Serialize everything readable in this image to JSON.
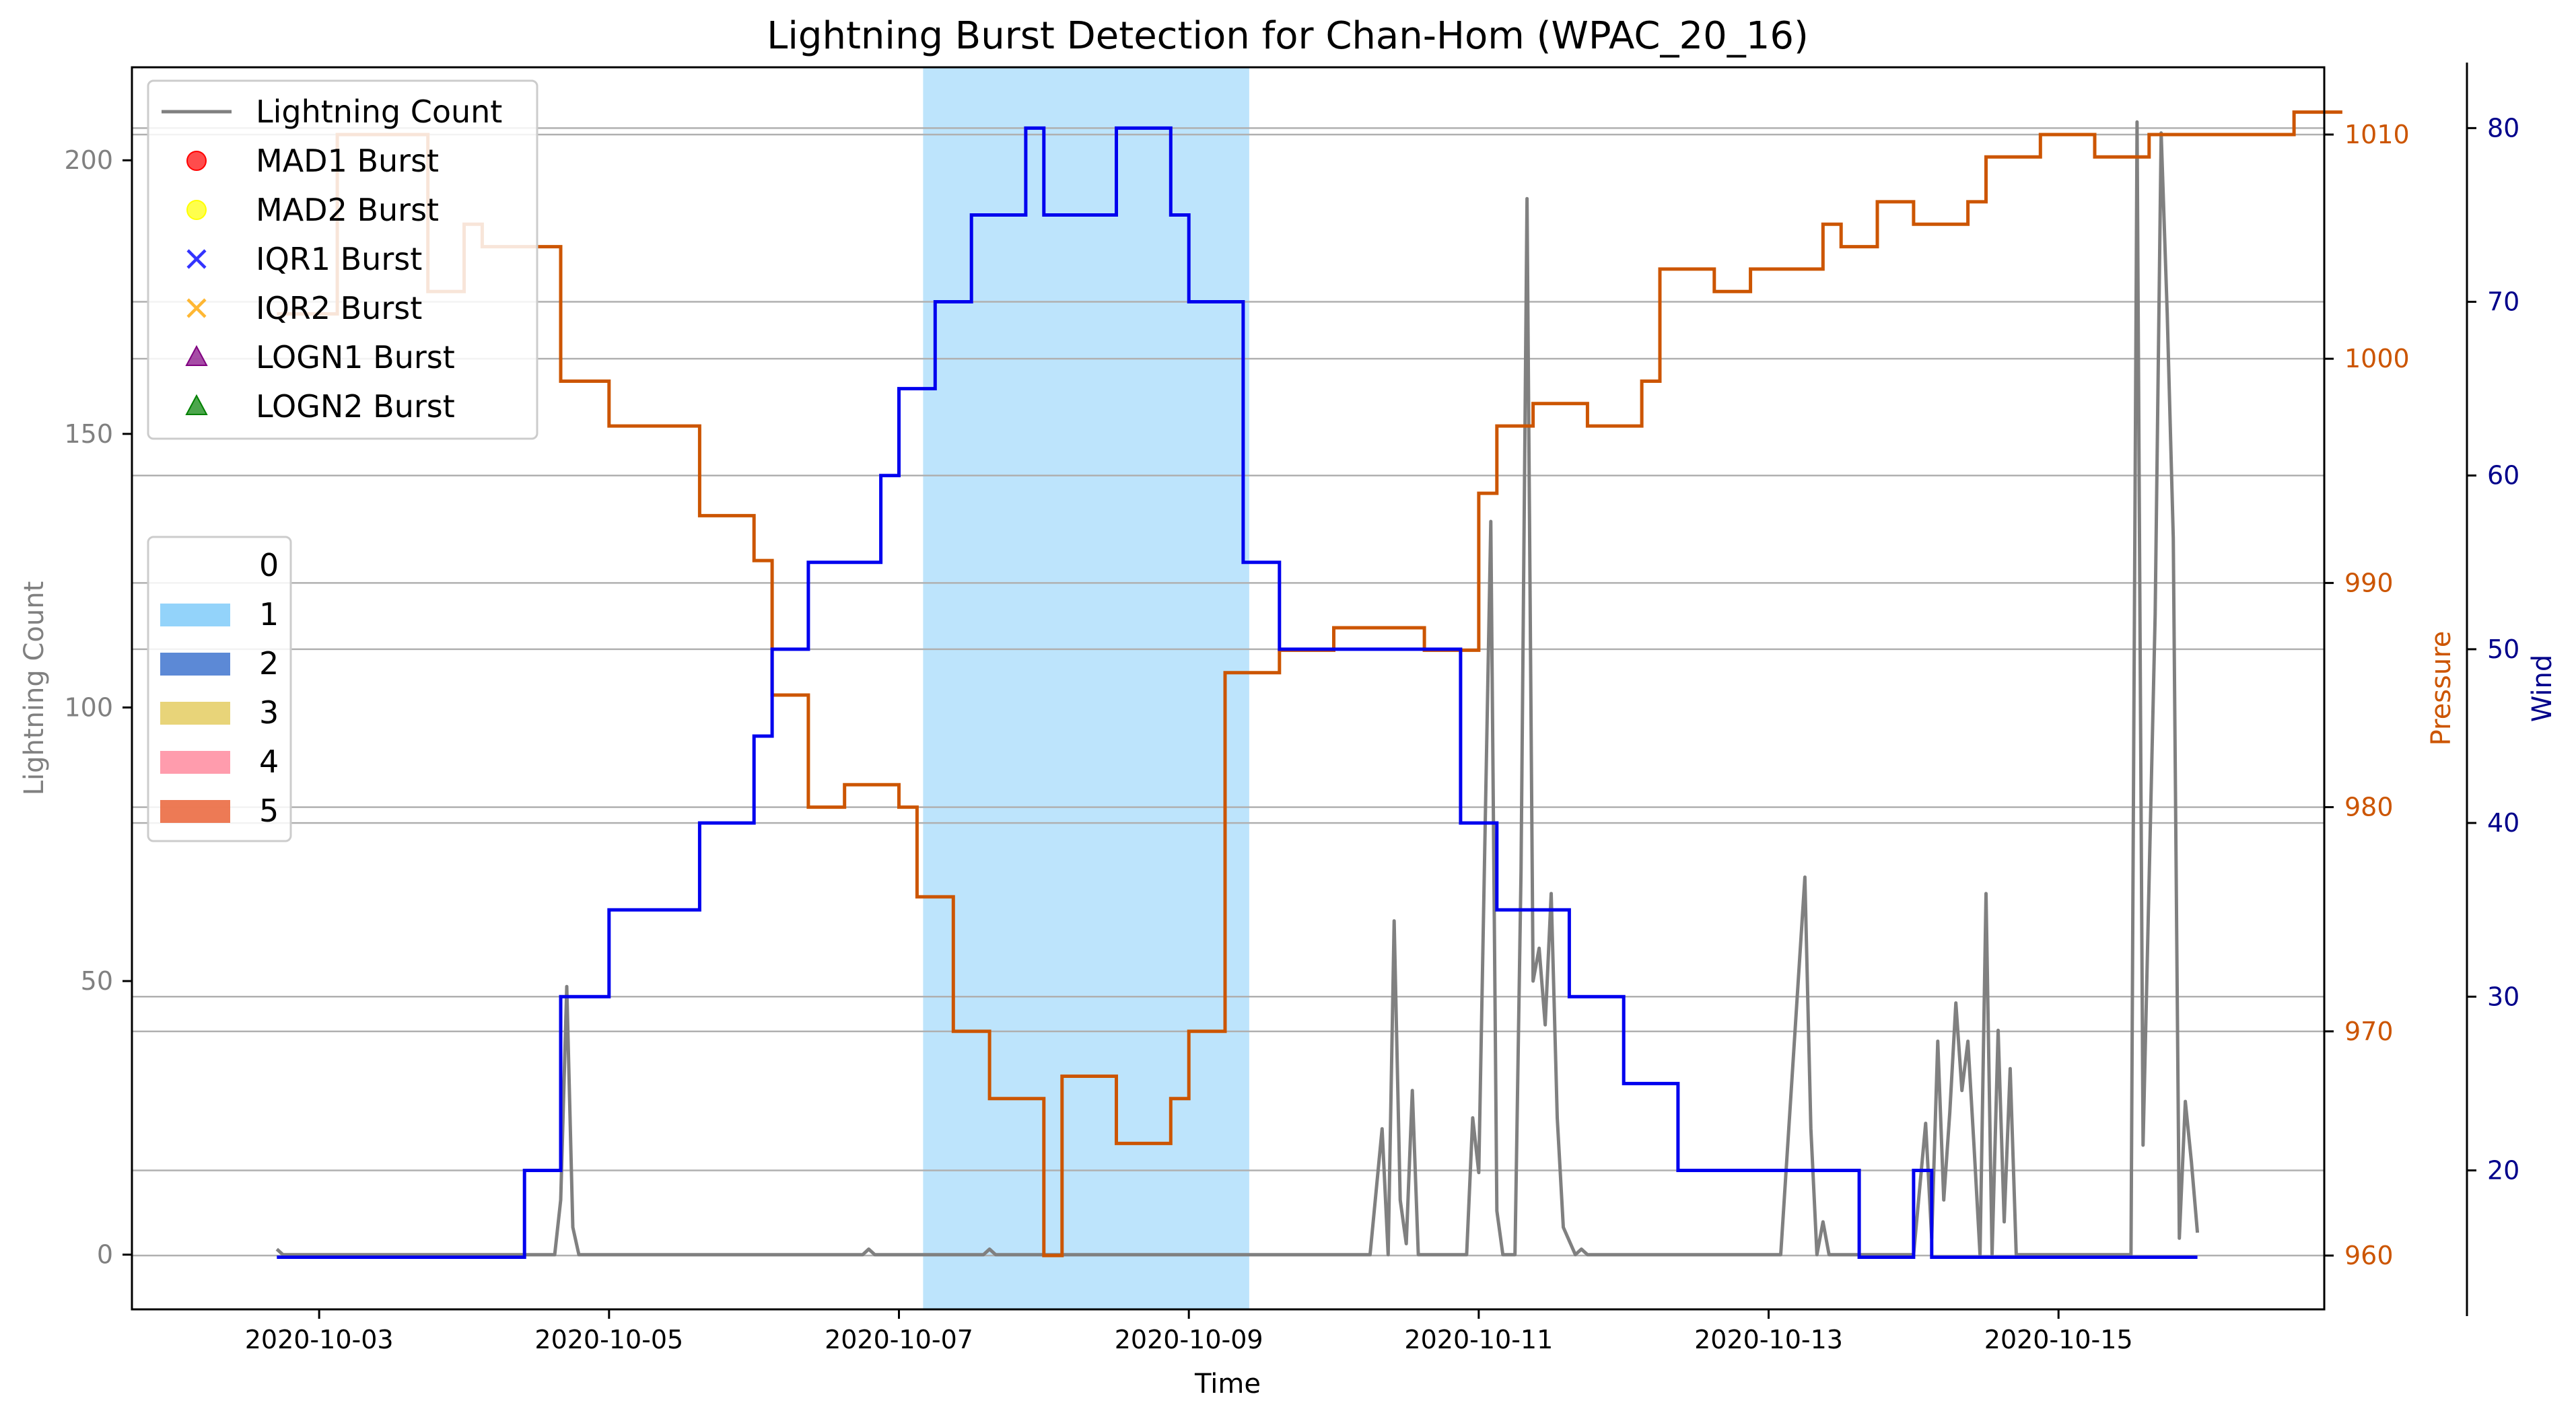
{
  "chart_data": {
    "type": "line",
    "title": "Lightning Burst Detection for Chan-Hom (WPAC_20_16)",
    "xlabel": "Time",
    "ylabel_left": "Lightning Count",
    "ylabel_pressure": "Pressure",
    "ylabel_wind": "Wind",
    "x_range": [
      "2020-10-01T17:00",
      "2020-10-16T20:00"
    ],
    "x_ticks": [
      "2020-10-03",
      "2020-10-05",
      "2020-10-07",
      "2020-10-09",
      "2020-10-11",
      "2020-10-13",
      "2020-10-15"
    ],
    "ylim_lightning": [
      -10,
      217
    ],
    "yticks_lightning": [
      0,
      50,
      100,
      150,
      200
    ],
    "ylim_pressure": [
      957.6,
      1013.0
    ],
    "yticks_pressure": [
      960,
      970,
      980,
      990,
      1000,
      1010
    ],
    "ylim_wind": [
      12,
      83.5
    ],
    "yticks_wind": [
      20,
      30,
      40,
      50,
      60,
      70,
      80
    ],
    "grid": "horizontal",
    "colors": {
      "lightning": "#808080",
      "pressure": "#cc5500",
      "wind": "#0000ee",
      "cat0": "#ffffff",
      "cat1": "#87cefa",
      "cat2": "#4a7cd1",
      "cat3": "#e6cf6a",
      "cat4": "#ff91a4",
      "cat5": "#eb6b43",
      "mad1": "#ff0000",
      "mad2": "#ffff00",
      "iqr1": "#0000ff",
      "iqr2": "#ffa500",
      "logn1": "#800080",
      "logn2": "#008000"
    },
    "category_band": {
      "category": "1",
      "start": "2020-10-07T04:00",
      "end": "2020-10-09T10:00"
    },
    "legend_series": [
      {
        "name": "Lightning Count",
        "marker": "line",
        "color": "#808080"
      },
      {
        "name": "MAD1 Burst",
        "marker": "circle",
        "color": "#ff0000"
      },
      {
        "name": "MAD2 Burst",
        "marker": "circle",
        "color": "#ffff00"
      },
      {
        "name": "IQR1 Burst",
        "marker": "x",
        "color": "#0000ff"
      },
      {
        "name": "IQR2 Burst",
        "marker": "x",
        "color": "#ffa500"
      },
      {
        "name": "LOGN1 Burst",
        "marker": "triangle",
        "color": "#800080"
      },
      {
        "name": "LOGN2 Burst",
        "marker": "triangle",
        "color": "#008000"
      }
    ],
    "legend_categories": [
      {
        "name": "0",
        "color": "#ffffff"
      },
      {
        "name": "1",
        "color": "#87cefa"
      },
      {
        "name": "2",
        "color": "#4a7cd1"
      },
      {
        "name": "3",
        "color": "#e6cf6a"
      },
      {
        "name": "4",
        "color": "#ff91a4"
      },
      {
        "name": "5",
        "color": "#eb6b43"
      }
    ],
    "wind_series": {
      "name": "Wind",
      "points": [
        [
          "2020-10-02T17:00",
          15
        ],
        [
          "2020-10-04T10:00",
          15
        ],
        [
          "2020-10-04T10:00",
          20
        ],
        [
          "2020-10-04T16:00",
          20
        ],
        [
          "2020-10-04T16:00",
          30
        ],
        [
          "2020-10-05T00:00",
          30
        ],
        [
          "2020-10-05T00:00",
          35
        ],
        [
          "2020-10-05T15:00",
          35
        ],
        [
          "2020-10-05T15:00",
          40
        ],
        [
          "2020-10-06T00:00",
          40
        ],
        [
          "2020-10-06T00:00",
          45
        ],
        [
          "2020-10-06T03:00",
          45
        ],
        [
          "2020-10-06T03:00",
          50
        ],
        [
          "2020-10-06T09:00",
          50
        ],
        [
          "2020-10-06T09:00",
          55
        ],
        [
          "2020-10-06T21:00",
          55
        ],
        [
          "2020-10-06T21:00",
          60
        ],
        [
          "2020-10-07T00:00",
          60
        ],
        [
          "2020-10-07T00:00",
          65
        ],
        [
          "2020-10-07T06:00",
          65
        ],
        [
          "2020-10-07T06:00",
          70
        ],
        [
          "2020-10-07T12:00",
          70
        ],
        [
          "2020-10-07T12:00",
          75
        ],
        [
          "2020-10-07T21:00",
          75
        ],
        [
          "2020-10-07T21:00",
          80
        ],
        [
          "2020-10-08T00:00",
          80
        ],
        [
          "2020-10-08T00:00",
          75
        ],
        [
          "2020-10-08T12:00",
          75
        ],
        [
          "2020-10-08T12:00",
          80
        ],
        [
          "2020-10-08T21:00",
          80
        ],
        [
          "2020-10-08T21:00",
          75
        ],
        [
          "2020-10-09T00:00",
          75
        ],
        [
          "2020-10-09T00:00",
          70
        ],
        [
          "2020-10-09T09:00",
          70
        ],
        [
          "2020-10-09T09:00",
          55
        ],
        [
          "2020-10-09T15:00",
          55
        ],
        [
          "2020-10-09T15:00",
          50
        ],
        [
          "2020-10-10T21:00",
          50
        ],
        [
          "2020-10-10T21:00",
          40
        ],
        [
          "2020-10-11T03:00",
          40
        ],
        [
          "2020-10-11T03:00",
          35
        ],
        [
          "2020-10-11T15:00",
          35
        ],
        [
          "2020-10-11T15:00",
          30
        ],
        [
          "2020-10-12T00:00",
          30
        ],
        [
          "2020-10-12T00:00",
          25
        ],
        [
          "2020-10-12T09:00",
          25
        ],
        [
          "2020-10-12T09:00",
          20
        ],
        [
          "2020-10-13T15:00",
          20
        ],
        [
          "2020-10-13T15:00",
          15
        ],
        [
          "2020-10-14T00:00",
          15
        ],
        [
          "2020-10-14T00:00",
          20
        ],
        [
          "2020-10-14T03:00",
          20
        ],
        [
          "2020-10-14T03:00",
          15
        ],
        [
          "2020-10-15T23:00",
          15
        ]
      ]
    },
    "pressure_series": {
      "name": "Pressure",
      "points": [
        [
          "2020-10-02T17:00",
          1002
        ],
        [
          "2020-10-03T03:00",
          1002
        ],
        [
          "2020-10-03T03:00",
          1010
        ],
        [
          "2020-10-03T18:00",
          1010
        ],
        [
          "2020-10-03T18:00",
          1003
        ],
        [
          "2020-10-04T00:00",
          1003
        ],
        [
          "2020-10-04T00:00",
          1006
        ],
        [
          "2020-10-04T03:00",
          1006
        ],
        [
          "2020-10-04T03:00",
          1005
        ],
        [
          "2020-10-04T16:00",
          1005
        ],
        [
          "2020-10-04T16:00",
          999
        ],
        [
          "2020-10-05T00:00",
          999
        ],
        [
          "2020-10-05T00:00",
          997
        ],
        [
          "2020-10-05T15:00",
          997
        ],
        [
          "2020-10-05T15:00",
          993
        ],
        [
          "2020-10-06T00:00",
          993
        ],
        [
          "2020-10-06T00:00",
          991
        ],
        [
          "2020-10-06T03:00",
          991
        ],
        [
          "2020-10-06T03:00",
          985
        ],
        [
          "2020-10-06T09:00",
          985
        ],
        [
          "2020-10-06T09:00",
          980
        ],
        [
          "2020-10-06T15:00",
          980
        ],
        [
          "2020-10-06T15:00",
          981
        ],
        [
          "2020-10-07T00:00",
          981
        ],
        [
          "2020-10-07T00:00",
          980
        ],
        [
          "2020-10-07T03:00",
          980
        ],
        [
          "2020-10-07T03:00",
          976
        ],
        [
          "2020-10-07T09:00",
          976
        ],
        [
          "2020-10-07T09:00",
          970
        ],
        [
          "2020-10-07T15:00",
          970
        ],
        [
          "2020-10-07T15:00",
          967
        ],
        [
          "2020-10-08T00:00",
          967
        ],
        [
          "2020-10-08T00:00",
          960
        ],
        [
          "2020-10-08T03:00",
          960
        ],
        [
          "2020-10-08T03:00",
          968
        ],
        [
          "2020-10-08T12:00",
          968
        ],
        [
          "2020-10-08T12:00",
          965
        ],
        [
          "2020-10-08T21:00",
          965
        ],
        [
          "2020-10-08T21:00",
          967
        ],
        [
          "2020-10-09T00:00",
          967
        ],
        [
          "2020-10-09T00:00",
          970
        ],
        [
          "2020-10-09T06:00",
          970
        ],
        [
          "2020-10-09T06:00",
          986
        ],
        [
          "2020-10-09T15:00",
          986
        ],
        [
          "2020-10-09T15:00",
          987
        ],
        [
          "2020-10-10T00:00",
          987
        ],
        [
          "2020-10-10T00:00",
          988
        ],
        [
          "2020-10-10T15:00",
          988
        ],
        [
          "2020-10-10T15:00",
          987
        ],
        [
          "2020-10-11T00:00",
          987
        ],
        [
          "2020-10-11T00:00",
          994
        ],
        [
          "2020-10-11T03:00",
          994
        ],
        [
          "2020-10-11T03:00",
          997
        ],
        [
          "2020-10-11T09:00",
          997
        ],
        [
          "2020-10-11T09:00",
          998
        ],
        [
          "2020-10-11T18:00",
          998
        ],
        [
          "2020-10-11T18:00",
          997
        ],
        [
          "2020-10-12T03:00",
          997
        ],
        [
          "2020-10-12T03:00",
          999
        ],
        [
          "2020-10-12T06:00",
          999
        ],
        [
          "2020-10-12T06:00",
          1004
        ],
        [
          "2020-10-12T15:00",
          1004
        ],
        [
          "2020-10-12T15:00",
          1003
        ],
        [
          "2020-10-12T21:00",
          1003
        ],
        [
          "2020-10-12T21:00",
          1004
        ],
        [
          "2020-10-13T09:00",
          1004
        ],
        [
          "2020-10-13T09:00",
          1006
        ],
        [
          "2020-10-13T12:00",
          1006
        ],
        [
          "2020-10-13T12:00",
          1005
        ],
        [
          "2020-10-13T18:00",
          1005
        ],
        [
          "2020-10-13T18:00",
          1007
        ],
        [
          "2020-10-14T00:00",
          1007
        ],
        [
          "2020-10-14T00:00",
          1006
        ],
        [
          "2020-10-14T09:00",
          1006
        ],
        [
          "2020-10-14T09:00",
          1007
        ],
        [
          "2020-10-14T12:00",
          1007
        ],
        [
          "2020-10-14T12:00",
          1009
        ],
        [
          "2020-10-14T15:00",
          1009
        ],
        [
          "2020-10-14T15:00",
          1009
        ],
        [
          "2020-10-14T21:00",
          1009
        ],
        [
          "2020-10-14T21:00",
          1010
        ],
        [
          "2020-10-15T06:00",
          1010
        ],
        [
          "2020-10-15T06:00",
          1009
        ],
        [
          "2020-10-15T15:00",
          1009
        ],
        [
          "2020-10-15T15:00",
          1010
        ],
        [
          "2020-10-16T15:00",
          1010
        ],
        [
          "2020-10-16T15:00",
          1011
        ],
        [
          "2020-10-16T23:00",
          1011
        ]
      ]
    },
    "lightning_series": {
      "name": "Lightning Count",
      "points": [
        [
          "2020-10-02T17:00",
          1
        ],
        [
          "2020-10-02T18:00",
          0
        ],
        [
          "2020-10-04T15:00",
          0
        ],
        [
          "2020-10-04T16:00",
          10
        ],
        [
          "2020-10-04T17:00",
          49
        ],
        [
          "2020-10-04T18:00",
          5
        ],
        [
          "2020-10-04T19:00",
          0
        ],
        [
          "2020-10-06T18:00",
          0
        ],
        [
          "2020-10-06T19:00",
          1
        ],
        [
          "2020-10-06T20:00",
          0
        ],
        [
          "2020-10-07T14:00",
          0
        ],
        [
          "2020-10-07T15:00",
          1
        ],
        [
          "2020-10-07T16:00",
          0
        ],
        [
          "2020-10-10T06:00",
          0
        ],
        [
          "2020-10-10T08:00",
          23
        ],
        [
          "2020-10-10T09:00",
          0
        ],
        [
          "2020-10-10T10:00",
          61
        ],
        [
          "2020-10-10T11:00",
          10
        ],
        [
          "2020-10-10T12:00",
          2
        ],
        [
          "2020-10-10T13:00",
          30
        ],
        [
          "2020-10-10T14:00",
          0
        ],
        [
          "2020-10-10T22:00",
          0
        ],
        [
          "2020-10-10T23:00",
          25
        ],
        [
          "2020-10-11T00:00",
          15
        ],
        [
          "2020-10-11T02:00",
          134
        ],
        [
          "2020-10-11T03:00",
          8
        ],
        [
          "2020-10-11T04:00",
          0
        ],
        [
          "2020-10-11T06:00",
          0
        ],
        [
          "2020-10-11T07:00",
          70
        ],
        [
          "2020-10-11T08:00",
          193
        ],
        [
          "2020-10-11T09:00",
          50
        ],
        [
          "2020-10-11T10:00",
          56
        ],
        [
          "2020-10-11T11:00",
          42
        ],
        [
          "2020-10-11T12:00",
          66
        ],
        [
          "2020-10-11T13:00",
          25
        ],
        [
          "2020-10-11T14:00",
          5
        ],
        [
          "2020-10-11T16:00",
          0
        ],
        [
          "2020-10-11T17:00",
          1
        ],
        [
          "2020-10-11T18:00",
          0
        ],
        [
          "2020-10-13T02:00",
          0
        ],
        [
          "2020-10-13T06:00",
          69
        ],
        [
          "2020-10-13T07:00",
          23
        ],
        [
          "2020-10-13T08:00",
          0
        ],
        [
          "2020-10-13T09:00",
          6
        ],
        [
          "2020-10-13T10:00",
          0
        ],
        [
          "2020-10-14T00:00",
          0
        ],
        [
          "2020-10-14T02:00",
          24
        ],
        [
          "2020-10-14T03:00",
          3
        ],
        [
          "2020-10-14T04:00",
          39
        ],
        [
          "2020-10-14T05:00",
          10
        ],
        [
          "2020-10-14T06:00",
          26
        ],
        [
          "2020-10-14T07:00",
          46
        ],
        [
          "2020-10-14T08:00",
          30
        ],
        [
          "2020-10-14T09:00",
          39
        ],
        [
          "2020-10-14T10:00",
          20
        ],
        [
          "2020-10-14T11:00",
          0
        ],
        [
          "2020-10-14T12:00",
          66
        ],
        [
          "2020-10-14T13:00",
          0
        ],
        [
          "2020-10-14T14:00",
          41
        ],
        [
          "2020-10-14T15:00",
          6
        ],
        [
          "2020-10-14T16:00",
          34
        ],
        [
          "2020-10-14T17:00",
          0
        ],
        [
          "2020-10-15T12:00",
          0
        ],
        [
          "2020-10-15T13:00",
          207
        ],
        [
          "2020-10-15T14:00",
          20
        ],
        [
          "2020-10-15T16:00",
          117
        ],
        [
          "2020-10-15T17:00",
          205
        ],
        [
          "2020-10-15T18:00",
          172
        ],
        [
          "2020-10-15T19:00",
          131
        ],
        [
          "2020-10-15T20:00",
          3
        ],
        [
          "2020-10-15T21:00",
          28
        ],
        [
          "2020-10-15T22:00",
          17
        ],
        [
          "2020-10-15T23:00",
          4
        ]
      ]
    }
  }
}
